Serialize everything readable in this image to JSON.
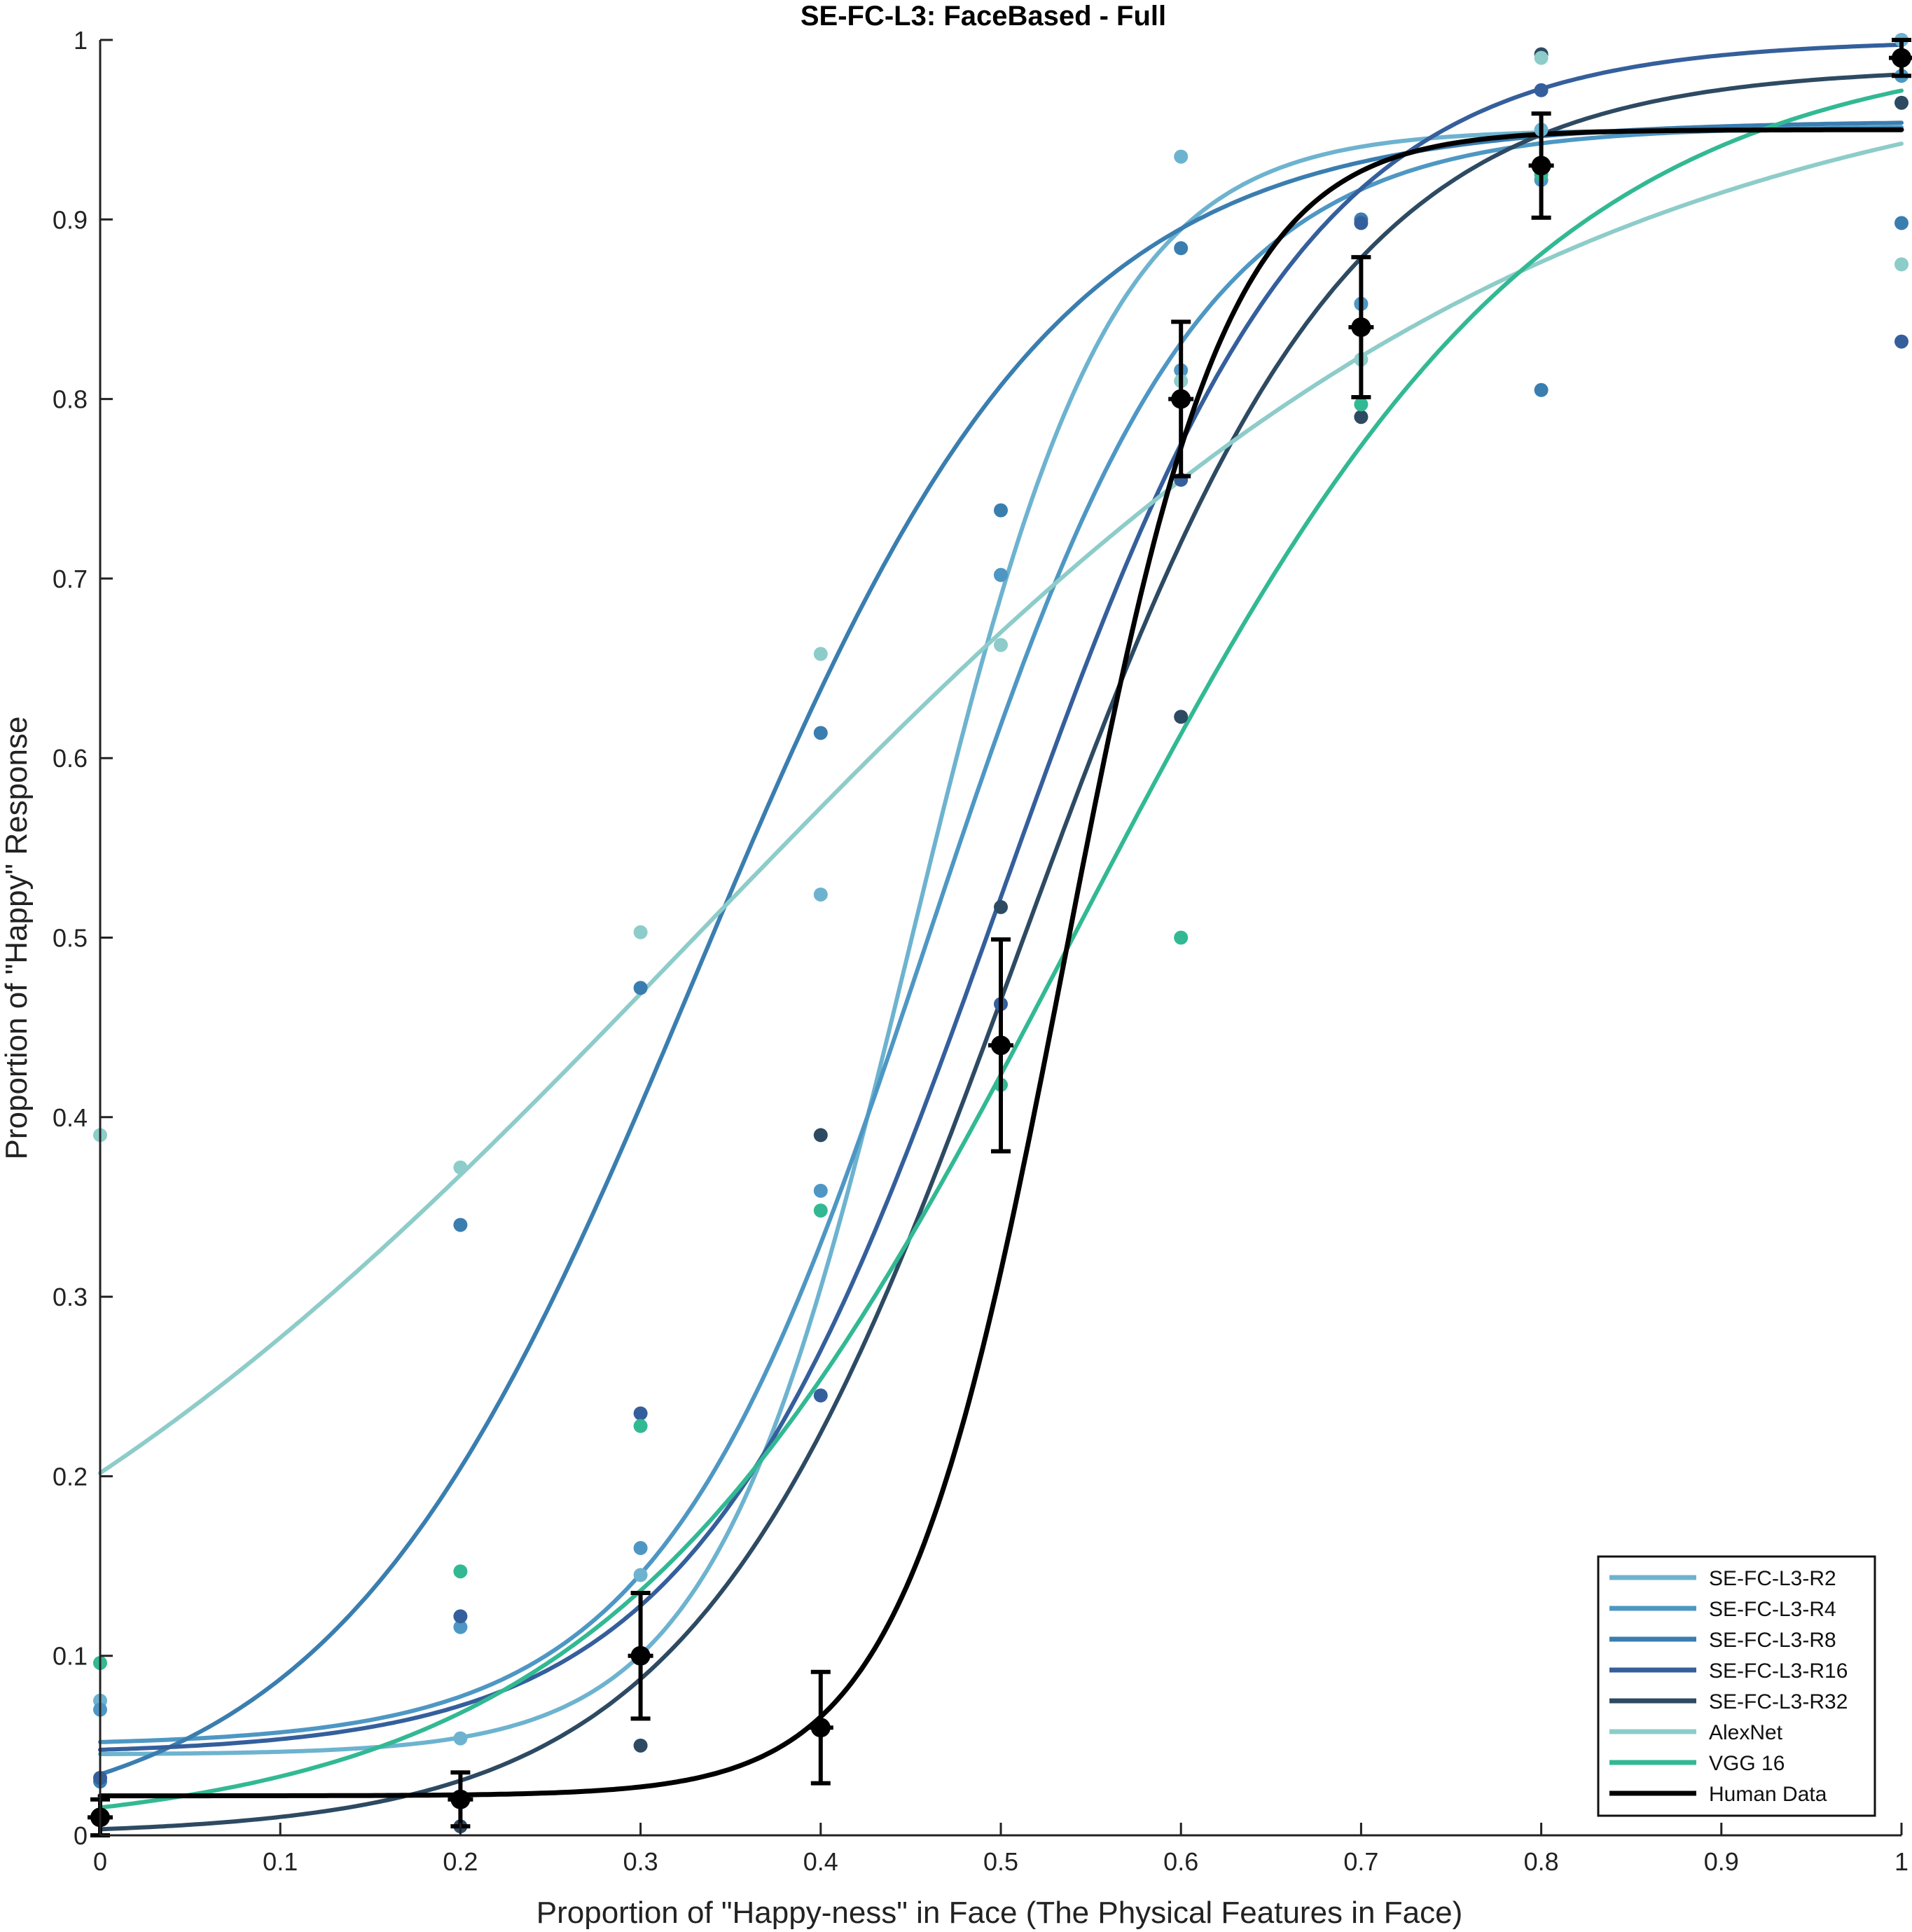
{
  "chart_data": {
    "type": "scatter",
    "title": "SE-FC-L3: FaceBased - Full",
    "xlabel": "Proportion of \"Happy-ness\" in Face (The Physical Features in Face)",
    "ylabel": "Proportion of \"Happy\" Response",
    "xlim": [
      0,
      1
    ],
    "ylim": [
      0,
      1
    ],
    "xticks": [
      "0",
      "0.1",
      "0.2",
      "0.3",
      "0.4",
      "0.5",
      "0.6",
      "0.7",
      "0.8",
      "0.9",
      "1"
    ],
    "yticks": [
      "0",
      "0.1",
      "0.2",
      "0.3",
      "0.4",
      "0.5",
      "0.6",
      "0.7",
      "0.8",
      "0.9",
      "1"
    ],
    "grid": false,
    "legend_position": "bottom-right",
    "x": [
      0,
      0.2,
      0.3,
      0.4,
      0.5,
      0.6,
      0.7,
      0.8,
      1
    ],
    "series": [
      {
        "name": "SE-FC-L3-R2",
        "color": "#6db3cf",
        "points": [
          0.075,
          0.054,
          0.145,
          0.524,
          0.702,
          0.935,
          0.853,
          0.95,
          1.0
        ],
        "fit": {
          "base": 0.045,
          "top": 0.95,
          "mid": 0.45,
          "width": 0.055
        }
      },
      {
        "name": "SE-FC-L3-R4",
        "color": "#4e97c4",
        "points": [
          0.07,
          0.116,
          0.16,
          0.359,
          0.702,
          0.816,
          0.853,
          0.922,
          0.98
        ],
        "fit": {
          "base": 0.05,
          "top": 0.952,
          "mid": 0.46,
          "width": 0.075
        }
      },
      {
        "name": "SE-FC-L3-R8",
        "color": "#3a7eb0",
        "points": [
          0.03,
          0.34,
          0.472,
          0.614,
          0.738,
          0.884,
          0.9,
          0.805,
          0.898
        ],
        "fit": {
          "base": 0.0,
          "top": 0.955,
          "mid": 0.33,
          "width": 0.1
        }
      },
      {
        "name": "SE-FC-L3-R16",
        "color": "#355f9c",
        "points": [
          0.032,
          0.122,
          0.235,
          0.245,
          0.463,
          0.755,
          0.898,
          0.972,
          0.832
        ],
        "fit": {
          "base": 0.045,
          "top": 1.0,
          "mid": 0.5,
          "width": 0.085
        }
      },
      {
        "name": "SE-FC-L3-R32",
        "color": "#2d4a62",
        "points": [
          0.01,
          0.005,
          0.05,
          0.39,
          0.517,
          0.623,
          0.79,
          0.992,
          0.965
        ],
        "fit": {
          "base": 0.0,
          "top": 0.985,
          "mid": 0.51,
          "width": 0.09
        }
      },
      {
        "name": "AlexNet",
        "color": "#8dccc9",
        "points": [
          0.39,
          0.372,
          0.503,
          0.658,
          0.663,
          0.81,
          0.822,
          0.99,
          0.875
        ],
        "fit": {
          "base": 0.0,
          "top": 1.0,
          "mid": 0.33,
          "width": 0.24
        }
      },
      {
        "name": "VGG 16",
        "color": "#32b993",
        "points": [
          0.096,
          0.147,
          0.228,
          0.348,
          0.418,
          0.5,
          0.797,
          0.925,
          0.99
        ],
        "fit": {
          "base": 0.0,
          "top": 1.0,
          "mid": 0.54,
          "width": 0.13
        }
      },
      {
        "name": "Human Data",
        "color": "#000000",
        "points": [
          0.01,
          0.02,
          0.1,
          0.06,
          0.44,
          0.8,
          0.84,
          0.93,
          0.99
        ],
        "errors": [
          0.01,
          0.015,
          0.035,
          0.031,
          0.059,
          0.043,
          0.039,
          0.029,
          0.01
        ],
        "fit": {
          "base": 0.022,
          "top": 0.95,
          "mid": 0.535,
          "width": 0.045
        }
      }
    ]
  }
}
